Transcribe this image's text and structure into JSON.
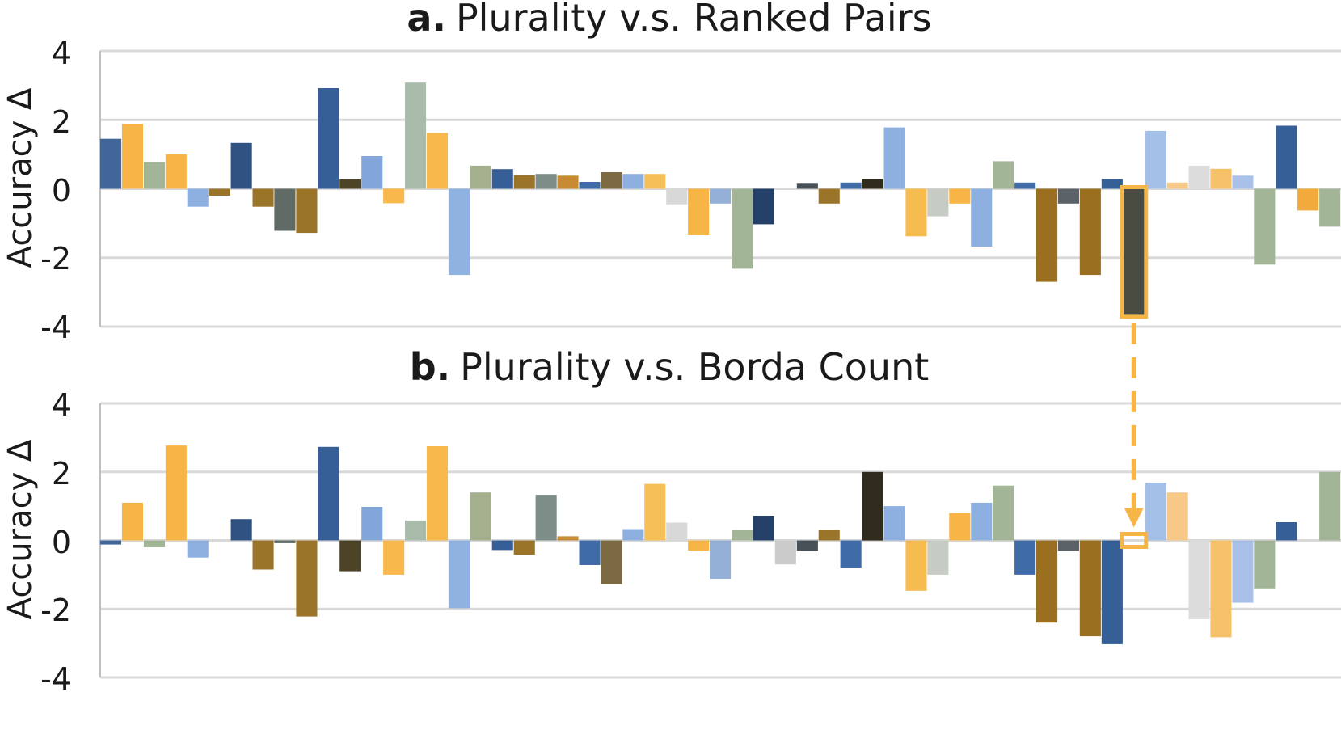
{
  "chart_data": [
    {
      "type": "bar",
      "title_prefix": "a.",
      "title": "Plurality v.s. Ranked Pairs",
      "ylabel": "Accuracy Δ",
      "ylim": [
        -4,
        4
      ],
      "yticks": [
        "4",
        "2",
        "0",
        "-2",
        "-4"
      ],
      "grid": true,
      "values": [
        1.45,
        1.88,
        0.78,
        1.0,
        -0.52,
        -0.2,
        1.33,
        -0.52,
        -1.22,
        -1.28,
        2.92,
        0.27,
        0.95,
        -0.42,
        3.08,
        1.62,
        -2.5,
        0.67,
        0.57,
        0.4,
        0.43,
        0.38,
        0.2,
        0.48,
        0.43,
        0.43,
        -0.45,
        -1.35,
        -0.43,
        -2.32,
        -1.03,
        0.0,
        0.17,
        -0.43,
        0.18,
        0.28,
        1.78,
        -1.38,
        -0.8,
        -0.43,
        -1.68,
        0.8,
        0.18,
        -2.7,
        -0.43,
        -2.5,
        0.28,
        -3.67,
        1.68,
        0.18,
        0.67,
        0.58,
        0.38,
        -2.2,
        1.83,
        -0.63,
        -1.1
      ],
      "highlight_index": 47
    },
    {
      "type": "bar",
      "title_prefix": "b.",
      "title": "Plurality v.s. Borda Count",
      "ylabel": "Accuracy Δ",
      "ylim": [
        -4,
        4
      ],
      "yticks": [
        "4",
        "2",
        "0",
        "-2",
        "-4"
      ],
      "grid": true,
      "values": [
        -0.12,
        1.1,
        -0.2,
        2.77,
        -0.5,
        0.0,
        0.62,
        -0.85,
        -0.08,
        -2.22,
        2.73,
        -0.9,
        0.98,
        -1.0,
        0.58,
        2.75,
        -1.98,
        1.4,
        -0.28,
        -0.42,
        1.33,
        0.12,
        -0.72,
        -1.28,
        0.33,
        1.65,
        0.52,
        -0.3,
        -1.12,
        0.3,
        0.72,
        -0.7,
        -0.3,
        0.3,
        -0.8,
        2.0,
        1.0,
        -1.47,
        -1.0,
        0.8,
        1.1,
        1.6,
        -1.0,
        -2.4,
        -0.3,
        -2.8,
        -3.03,
        0.0,
        1.68,
        1.4,
        -2.3,
        -2.83,
        -1.82,
        -1.4,
        0.53,
        0.0,
        2.0
      ],
      "highlight_index": 47
    }
  ],
  "colors": {
    "palette": [
      "#41679a",
      "#f7b548",
      "#a3b597",
      "#f7b548",
      "#8eb0e1",
      "#9a7429",
      "#2f5282",
      "#9a7429",
      "#5f6b64",
      "#9a7429",
      "#355f96",
      "#4d4326",
      "#82a6da",
      "#f8b84b",
      "#a9bcac",
      "#f8b84b",
      "#90b2e0",
      "#a4b08d",
      "#355f96",
      "#9a7429",
      "#7d8d87",
      "#c68b33",
      "#3f6ca7",
      "#7c6a43",
      "#8eb0e1",
      "#f6bf58",
      "#d8d8d8",
      "#f7b548",
      "#94b0d7",
      "#a3b597",
      "#243f68",
      "#cbcbcb",
      "#495158",
      "#9a7429",
      "#3f6ca7",
      "#302b1d",
      "#8eb0e1",
      "#f6bc4f",
      "#c6ccc4",
      "#f7b548",
      "#8eb0e1",
      "#a3b597",
      "#3f6ca7",
      "#9a7020",
      "#5b6267",
      "#9a7020",
      "#355f96",
      "#4a4c41",
      "#a3c0e8",
      "#f6c989",
      "#dcdcdc",
      "#f7c16a",
      "#a9c1e8",
      "#a3b597",
      "#355f96",
      "#f2aa3c",
      "#a3b597"
    ],
    "highlight": "#f6b647",
    "grid": "#d9d9d9",
    "axis": "#bfbfbf"
  }
}
